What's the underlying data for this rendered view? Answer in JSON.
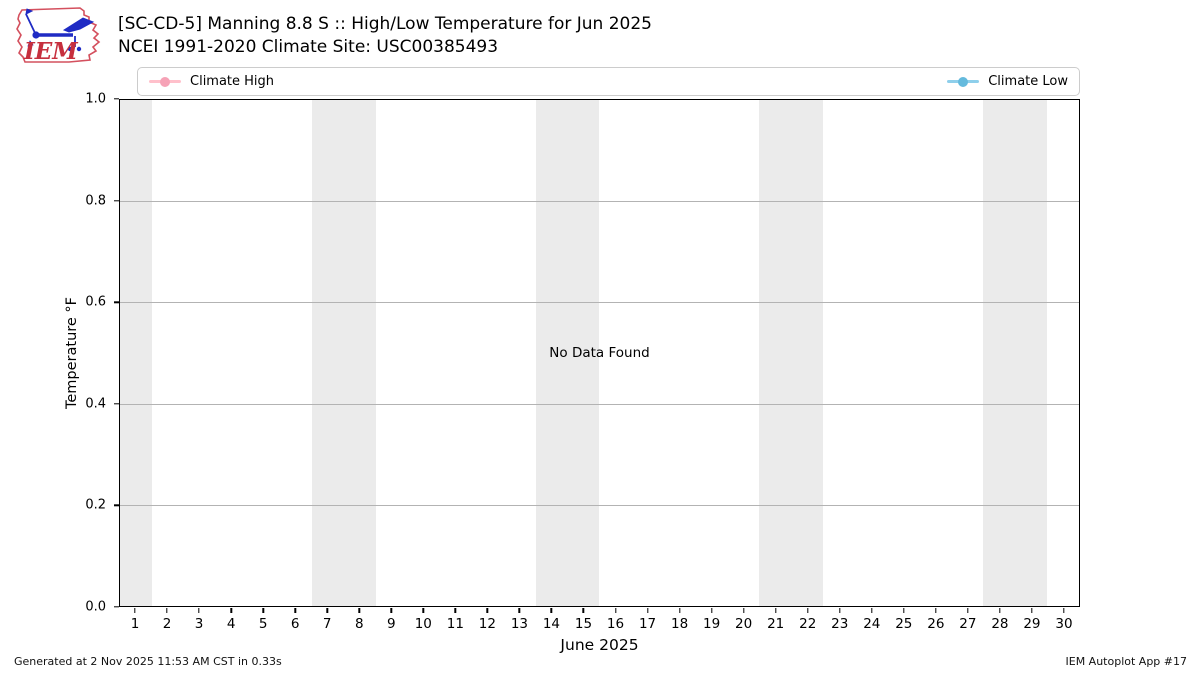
{
  "logo": {
    "text": "IEM"
  },
  "chart_data": {
    "type": "line",
    "title": "[SC-CD-5] Manning 8.8 S :: High/Low Temperature for Jun 2025",
    "subtitle": "NCEI 1991-2020 Climate Site: USC00385493",
    "xlabel": "June 2025",
    "ylabel": "Temperature °F",
    "xlim": [
      0.5,
      30.5
    ],
    "ylim": [
      0.0,
      1.0
    ],
    "x_ticks": [
      1,
      2,
      3,
      4,
      5,
      6,
      7,
      8,
      9,
      10,
      11,
      12,
      13,
      14,
      15,
      16,
      17,
      18,
      19,
      20,
      21,
      22,
      23,
      24,
      25,
      26,
      27,
      28,
      29,
      30
    ],
    "y_ticks": [
      {
        "value": 0.0,
        "label": "0.0"
      },
      {
        "value": 0.2,
        "label": "0.2"
      },
      {
        "value": 0.4,
        "label": "0.4"
      },
      {
        "value": 0.6,
        "label": "0.6"
      },
      {
        "value": 0.8,
        "label": "0.8"
      },
      {
        "value": 1.0,
        "label": "1.0"
      }
    ],
    "series": [
      {
        "name": "Climate High",
        "color": "#f6a2b6",
        "line_color": "#ffc0cb",
        "x": [],
        "values": []
      },
      {
        "name": "Climate Low",
        "color": "#64badd",
        "line_color": "#8ecfeb",
        "x": [],
        "values": []
      }
    ],
    "no_data_message": "No Data Found",
    "weekend_shading": {
      "color": "#ebebeb",
      "bands": [
        [
          0.5,
          1.5
        ],
        [
          6.5,
          8.5
        ],
        [
          13.5,
          15.5
        ],
        [
          20.5,
          22.5
        ],
        [
          27.5,
          29.5
        ]
      ]
    },
    "grid": {
      "orientation": "horizontal",
      "color": "#b3b3b3"
    },
    "legend_position": "top",
    "frame_color": "#000000"
  },
  "footer": {
    "generated": "Generated at 2 Nov 2025 11:53 AM CST in 0.33s",
    "app": "IEM Autoplot App #17"
  }
}
